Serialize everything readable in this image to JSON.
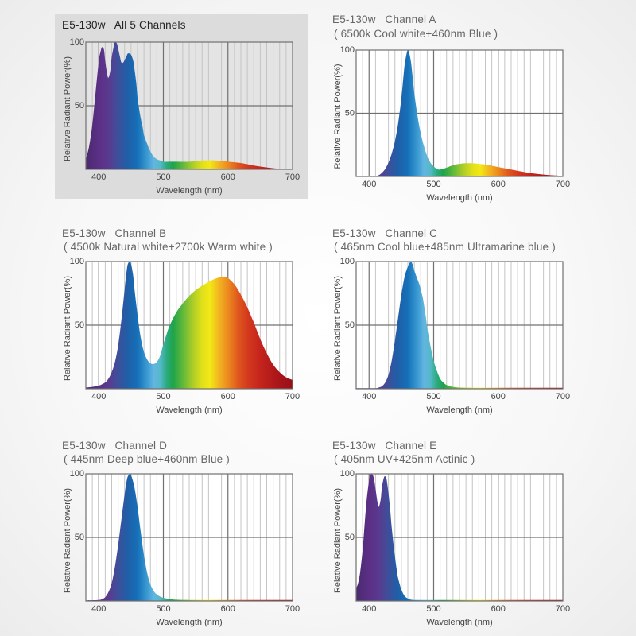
{
  "colors": {
    "text": "#666666",
    "grid_major": "#6a6a6a",
    "grid_minor": "#bdbdbd",
    "highlight_panel": "#dcdcdc"
  },
  "chart_data": [
    {
      "id": "all",
      "type": "area",
      "title": "E5-130w   All 5 Channels",
      "subtitle": "",
      "xlabel": "Wavelength (nm)",
      "ylabel": "Relative Radiant Power(%)",
      "xlim": [
        380,
        700
      ],
      "ylim": [
        0,
        100
      ],
      "xticks": [
        "400",
        "500",
        "600",
        "700"
      ],
      "yticks": [
        "50",
        "100"
      ],
      "grid": true,
      "x": [
        380,
        385,
        390,
        395,
        400,
        403,
        405,
        408,
        410,
        413,
        415,
        418,
        420,
        423,
        425,
        428,
        430,
        433,
        435,
        438,
        440,
        443,
        445,
        448,
        450,
        453,
        455,
        458,
        460,
        463,
        465,
        468,
        470,
        475,
        480,
        485,
        490,
        495,
        500,
        510,
        520,
        540,
        560,
        570,
        580,
        600,
        620,
        640,
        660,
        680,
        700
      ],
      "y": [
        8,
        18,
        35,
        60,
        85,
        93,
        96,
        94,
        85,
        75,
        72,
        78,
        88,
        96,
        100,
        99,
        95,
        88,
        84,
        84,
        86,
        89,
        91,
        91,
        90,
        86,
        80,
        68,
        56,
        46,
        40,
        33,
        27,
        20,
        14,
        10,
        8,
        7,
        6,
        6,
        6,
        6,
        7,
        7,
        7,
        6,
        5,
        3,
        1.5,
        0.5,
        0.2
      ]
    },
    {
      "id": "a",
      "type": "area",
      "title": "E5-130w   Channel A",
      "subtitle": "( 6500k Cool white+460nm Blue )",
      "xlabel": "Wavelength (nm)",
      "ylabel": "Relative Radiant Power(%)",
      "xlim": [
        380,
        700
      ],
      "ylim": [
        0,
        100
      ],
      "xticks": [
        "400",
        "500",
        "600",
        "700"
      ],
      "yticks": [
        "50",
        "100"
      ],
      "grid": true,
      "x": [
        380,
        400,
        410,
        415,
        420,
        425,
        430,
        435,
        440,
        445,
        450,
        453,
        455,
        458,
        460,
        462,
        465,
        468,
        470,
        475,
        480,
        485,
        490,
        495,
        500,
        505,
        510,
        520,
        530,
        540,
        550,
        560,
        570,
        580,
        590,
        600,
        620,
        640,
        660,
        680,
        700
      ],
      "y": [
        0.5,
        0.5,
        0.5,
        1,
        3,
        6,
        11,
        18,
        28,
        42,
        62,
        78,
        88,
        97,
        100,
        98,
        90,
        76,
        66,
        48,
        34,
        24,
        16,
        11,
        8,
        6,
        5.5,
        7,
        9,
        10,
        10.5,
        10.5,
        10,
        9.5,
        8.5,
        7.5,
        5.5,
        3.5,
        2,
        1,
        0.5
      ]
    },
    {
      "id": "b",
      "type": "area",
      "title": "E5-130w   Channel B",
      "subtitle": "( 4500k Natural white+2700k Warm white )",
      "xlabel": "Wavelength (nm)",
      "ylabel": "Relative Radiant Power(%)",
      "xlim": [
        380,
        700
      ],
      "ylim": [
        0,
        100
      ],
      "xticks": [
        "400",
        "500",
        "600",
        "700"
      ],
      "yticks": [
        "50",
        "100"
      ],
      "grid": true,
      "x": [
        380,
        390,
        400,
        410,
        415,
        420,
        425,
        430,
        435,
        440,
        443,
        445,
        448,
        450,
        453,
        455,
        460,
        465,
        470,
        475,
        480,
        485,
        490,
        495,
        500,
        505,
        510,
        520,
        530,
        540,
        550,
        560,
        570,
        580,
        590,
        595,
        600,
        610,
        620,
        630,
        640,
        650,
        660,
        670,
        680,
        690,
        700
      ],
      "y": [
        1,
        1.5,
        2.5,
        5,
        8,
        13,
        21,
        34,
        54,
        78,
        92,
        98,
        100,
        98,
        90,
        80,
        58,
        40,
        29,
        23,
        20,
        19.5,
        21,
        26,
        35,
        43,
        50,
        60,
        67,
        73,
        77.5,
        81,
        84,
        86.5,
        88,
        88,
        87,
        82,
        74,
        64,
        52,
        39,
        28,
        19,
        13,
        9,
        7
      ]
    },
    {
      "id": "c",
      "type": "area",
      "title": "E5-130w   Channel C",
      "subtitle": "( 465nm Cool blue+485nm Ultramarine blue )",
      "xlabel": "Wavelength (nm)",
      "ylabel": "Relative Radiant Power(%)",
      "xlim": [
        380,
        700
      ],
      "ylim": [
        0,
        100
      ],
      "xticks": [
        "400",
        "500",
        "600",
        "700"
      ],
      "yticks": [
        "50",
        "100"
      ],
      "grid": true,
      "x": [
        380,
        410,
        415,
        420,
        425,
        430,
        435,
        440,
        445,
        450,
        455,
        460,
        463,
        465,
        468,
        470,
        475,
        478,
        480,
        483,
        485,
        488,
        490,
        495,
        500,
        505,
        510,
        515,
        520,
        530,
        540,
        560,
        600,
        650,
        700
      ],
      "y": [
        0.5,
        0.5,
        1,
        2,
        5,
        11,
        22,
        38,
        56,
        74,
        88,
        96,
        99,
        100,
        97,
        93,
        86,
        82,
        78,
        72,
        66,
        56,
        48,
        34,
        22,
        14,
        8,
        5,
        3,
        1.5,
        1,
        0.8,
        0.8,
        0.8,
        0.8
      ]
    },
    {
      "id": "d",
      "type": "area",
      "title": "E5-130w   Channel D",
      "subtitle": "( 445nm Deep blue+460nm Blue )",
      "xlabel": "Wavelength (nm)",
      "ylabel": "Relative Radiant Power(%)",
      "xlim": [
        380,
        700
      ],
      "ylim": [
        0,
        100
      ],
      "xticks": [
        "400",
        "500",
        "600",
        "700"
      ],
      "yticks": [
        "50",
        "100"
      ],
      "grid": true,
      "x": [
        380,
        400,
        405,
        410,
        415,
        420,
        425,
        430,
        435,
        440,
        443,
        445,
        448,
        450,
        455,
        460,
        465,
        470,
        475,
        480,
        485,
        490,
        495,
        500,
        510,
        520,
        540,
        600,
        650,
        700
      ],
      "y": [
        0.5,
        0.8,
        1.5,
        3,
        7,
        14,
        27,
        44,
        64,
        84,
        94,
        98,
        100,
        99,
        90,
        74,
        54,
        36,
        22,
        13,
        8,
        5,
        3.5,
        2.5,
        1.5,
        1,
        0.8,
        0.8,
        0.8,
        0.8
      ]
    },
    {
      "id": "e",
      "type": "area",
      "title": "E5-130w   Channel E",
      "subtitle": "( 405nm UV+425nm Actinic )",
      "xlabel": "Wavelength (nm)",
      "ylabel": "Relative Radiant Power(%)",
      "xlim": [
        380,
        700
      ],
      "ylim": [
        0,
        100
      ],
      "xticks": [
        "400",
        "500",
        "600",
        "700"
      ],
      "yticks": [
        "50",
        "100"
      ],
      "grid": true,
      "x": [
        380,
        383,
        386,
        390,
        393,
        396,
        400,
        402,
        404,
        406,
        408,
        410,
        413,
        415,
        418,
        420,
        423,
        425,
        427,
        430,
        433,
        435,
        438,
        440,
        443,
        445,
        450,
        455,
        460,
        465,
        470,
        480,
        500,
        550,
        600,
        650,
        700
      ],
      "y": [
        10,
        14,
        22,
        40,
        60,
        78,
        95,
        99,
        100,
        99,
        95,
        88,
        78,
        74,
        80,
        90,
        97,
        98,
        96,
        85,
        70,
        58,
        44,
        35,
        24,
        18,
        9,
        4,
        2,
        1,
        0.8,
        0.8,
        0.8,
        0.8,
        0.8,
        0.8,
        0.8
      ]
    }
  ]
}
